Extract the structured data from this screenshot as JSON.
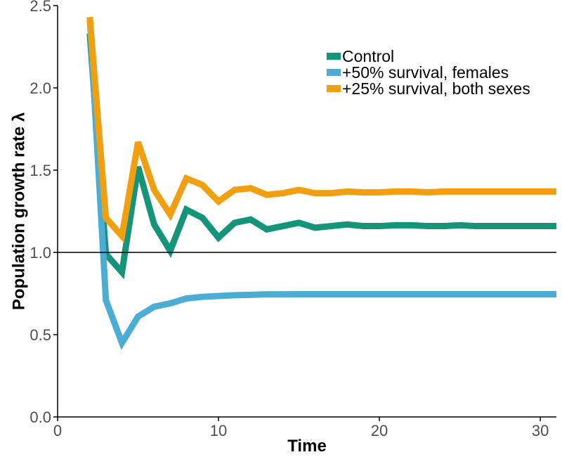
{
  "chart_data": {
    "type": "line",
    "xlabel": "Time",
    "ylabel": "Population growth rate λ",
    "xlim": [
      0,
      31
    ],
    "ylim": [
      0,
      2.5
    ],
    "xticks": [
      0,
      10,
      20,
      30
    ],
    "xtick_labels": [
      "0",
      "10",
      "20",
      "30"
    ],
    "yticks": [
      0,
      0.5,
      1,
      1.5,
      2,
      2.5
    ],
    "ytick_labels": [
      "0.0",
      "0.5",
      "1.0",
      "1.5",
      "2.0",
      "2.5"
    ],
    "reference_line_y": 1.0,
    "grid": false,
    "legend_position": "top-right",
    "series": [
      {
        "name": "Control",
        "color": "#14957a",
        "x": [
          2,
          3,
          4,
          5,
          6,
          7,
          8,
          9,
          10,
          11,
          12,
          13,
          14,
          15,
          16,
          17,
          18,
          19,
          20,
          21,
          22,
          23,
          24,
          25,
          26,
          27,
          28,
          29,
          30,
          31
        ],
        "values": [
          2.33,
          0.99,
          0.88,
          1.52,
          1.17,
          1.01,
          1.26,
          1.21,
          1.09,
          1.18,
          1.2,
          1.14,
          1.16,
          1.18,
          1.15,
          1.16,
          1.17,
          1.16,
          1.16,
          1.165,
          1.165,
          1.16,
          1.16,
          1.165,
          1.16,
          1.16,
          1.16,
          1.16,
          1.16,
          1.16
        ]
      },
      {
        "name": "+50% survival, females",
        "color": "#4badd3",
        "x": [
          2,
          3,
          4,
          5,
          6,
          7,
          8,
          9,
          10,
          11,
          12,
          13,
          14,
          15,
          16,
          17,
          18,
          19,
          20,
          21,
          22,
          23,
          24,
          25,
          26,
          27,
          28,
          29,
          30,
          31
        ],
        "values": [
          2.43,
          0.71,
          0.45,
          0.61,
          0.67,
          0.69,
          0.72,
          0.73,
          0.735,
          0.74,
          0.742,
          0.745,
          0.745,
          0.746,
          0.746,
          0.746,
          0.746,
          0.746,
          0.746,
          0.746,
          0.746,
          0.746,
          0.746,
          0.746,
          0.746,
          0.746,
          0.746,
          0.746,
          0.746,
          0.746
        ]
      },
      {
        "name": "+25% survival, both sexes",
        "color": "#f09f10",
        "x": [
          2,
          3,
          4,
          5,
          6,
          7,
          8,
          9,
          10,
          11,
          12,
          13,
          14,
          15,
          16,
          17,
          18,
          19,
          20,
          21,
          22,
          23,
          24,
          25,
          26,
          27,
          28,
          29,
          30,
          31
        ],
        "values": [
          2.43,
          1.21,
          1.1,
          1.67,
          1.38,
          1.23,
          1.45,
          1.41,
          1.31,
          1.38,
          1.39,
          1.35,
          1.36,
          1.38,
          1.36,
          1.36,
          1.37,
          1.365,
          1.365,
          1.37,
          1.37,
          1.365,
          1.37,
          1.37,
          1.37,
          1.37,
          1.37,
          1.37,
          1.37,
          1.37
        ]
      }
    ]
  }
}
